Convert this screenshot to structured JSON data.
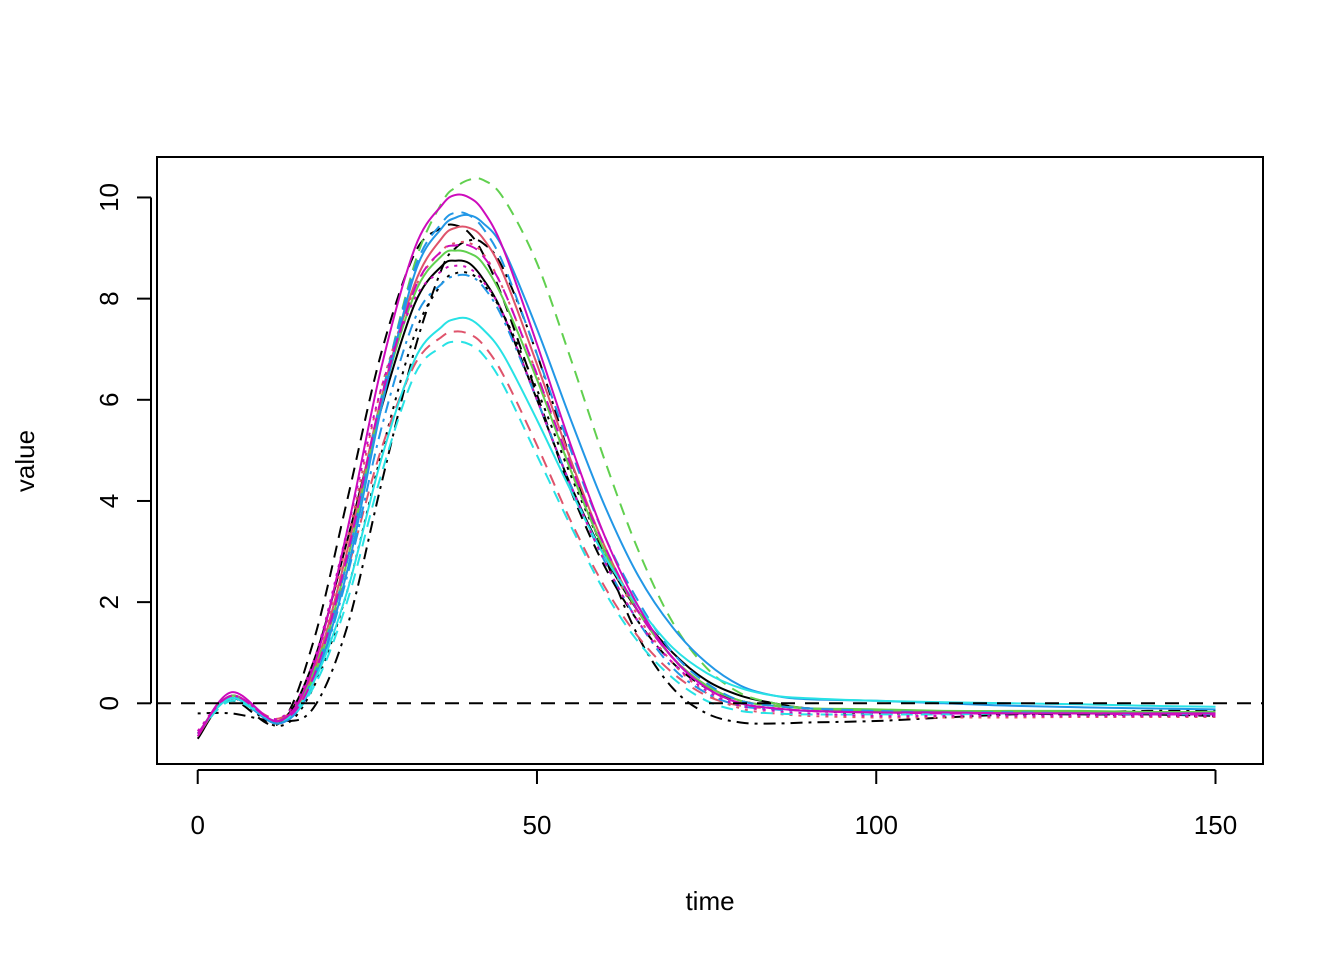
{
  "chart_data": {
    "type": "line",
    "title": "",
    "xlabel": "time",
    "ylabel": "value",
    "xlim": [
      -6,
      157
    ],
    "ylim": [
      -1.2,
      10.8
    ],
    "x_ticks": [
      0,
      50,
      100,
      150
    ],
    "x_tick_labels": [
      "0",
      "50",
      "100",
      "150"
    ],
    "y_ticks": [
      0,
      2,
      4,
      6,
      8,
      10
    ],
    "y_tick_labels": [
      "0",
      "2",
      "4",
      "6",
      "8",
      "10"
    ],
    "grid": false,
    "legend": "none",
    "reference_line": {
      "y": 0,
      "style": "dashed",
      "color": "#000000"
    },
    "series_x": [
      0,
      5,
      12,
      17,
      22,
      27,
      32,
      36,
      38,
      40,
      42,
      45,
      50,
      55,
      60,
      65,
      70,
      75,
      80,
      85,
      90,
      100,
      110,
      120,
      130,
      140,
      150
    ],
    "series": [
      {
        "color": "#000000",
        "dash": "solid",
        "values": [
          -0.7,
          0.15,
          -0.35,
          0.8,
          3.2,
          5.8,
          7.9,
          8.65,
          8.75,
          8.7,
          8.4,
          7.7,
          6.0,
          4.3,
          2.9,
          1.8,
          1.0,
          0.45,
          0.15,
          0.0,
          -0.1,
          -0.15,
          -0.18,
          -0.18,
          -0.2,
          -0.2,
          -0.22
        ]
      },
      {
        "color": "#000000",
        "dash": "dashed",
        "values": [
          -0.6,
          0.05,
          -0.4,
          1.2,
          4.0,
          6.9,
          8.9,
          9.4,
          9.45,
          9.3,
          8.9,
          8.0,
          6.1,
          4.2,
          2.7,
          1.6,
          0.8,
          0.3,
          0.05,
          -0.05,
          -0.1,
          -0.15,
          -0.18,
          -0.2,
          -0.22,
          -0.22,
          -0.25
        ]
      },
      {
        "color": "#000000",
        "dash": "dotted",
        "values": [
          -0.6,
          0.1,
          -0.45,
          0.3,
          2.2,
          4.9,
          7.3,
          8.3,
          8.5,
          8.5,
          8.3,
          7.7,
          6.2,
          4.5,
          3.0,
          1.8,
          0.9,
          0.3,
          0.0,
          -0.1,
          -0.15,
          -0.2,
          -0.2,
          -0.22,
          -0.22,
          -0.24,
          -0.25
        ]
      },
      {
        "color": "#000000",
        "dash": "dotdash",
        "values": [
          -0.2,
          -0.2,
          -0.35,
          -0.1,
          1.5,
          4.3,
          7.0,
          8.6,
          9.0,
          9.15,
          9.1,
          8.6,
          6.9,
          4.8,
          2.9,
          1.3,
          0.3,
          -0.2,
          -0.38,
          -0.4,
          -0.38,
          -0.35,
          -0.28,
          -0.22,
          -0.18,
          -0.15,
          -0.15
        ]
      },
      {
        "color": "#DF536B",
        "dash": "solid",
        "values": [
          -0.65,
          0.15,
          -0.35,
          0.6,
          3.0,
          6.0,
          8.3,
          9.2,
          9.4,
          9.4,
          9.2,
          8.5,
          6.7,
          4.8,
          3.1,
          1.8,
          0.9,
          0.35,
          0.05,
          -0.05,
          -0.1,
          -0.15,
          -0.16,
          -0.18,
          -0.18,
          -0.2,
          -0.2
        ]
      },
      {
        "color": "#DF536B",
        "dash": "dashed",
        "values": [
          -0.6,
          0.1,
          -0.3,
          0.5,
          2.6,
          5.0,
          6.7,
          7.25,
          7.35,
          7.3,
          7.1,
          6.5,
          5.1,
          3.6,
          2.3,
          1.3,
          0.6,
          0.15,
          -0.05,
          -0.1,
          -0.15,
          -0.18,
          -0.18,
          -0.2,
          -0.2,
          -0.2,
          -0.22
        ]
      },
      {
        "color": "#DF536B",
        "dash": "dotted",
        "values": [
          -0.55,
          0.12,
          -0.35,
          0.7,
          3.2,
          6.2,
          8.2,
          8.95,
          9.1,
          9.1,
          8.9,
          8.2,
          6.5,
          4.6,
          3.0,
          1.7,
          0.8,
          0.2,
          -0.1,
          -0.2,
          -0.25,
          -0.28,
          -0.28,
          -0.28,
          -0.27,
          -0.27,
          -0.27
        ]
      },
      {
        "color": "#61D04F",
        "dash": "solid",
        "values": [
          -0.6,
          0.15,
          -0.4,
          0.5,
          2.8,
          5.9,
          8.1,
          8.85,
          8.95,
          8.9,
          8.7,
          8.0,
          6.4,
          4.6,
          3.0,
          1.8,
          0.9,
          0.35,
          0.05,
          -0.05,
          -0.1,
          -0.12,
          -0.15,
          -0.15,
          -0.15,
          -0.17,
          -0.17
        ]
      },
      {
        "color": "#61D04F",
        "dash": "dashed",
        "values": [
          -0.6,
          0.1,
          -0.35,
          0.6,
          2.8,
          6.0,
          8.7,
          9.9,
          10.2,
          10.35,
          10.35,
          10.0,
          8.7,
          6.8,
          4.8,
          3.0,
          1.6,
          0.7,
          0.2,
          0.0,
          -0.1,
          -0.15,
          -0.17,
          -0.18,
          -0.18,
          -0.2,
          -0.2
        ]
      },
      {
        "color": "#2297E6",
        "dash": "solid",
        "values": [
          -0.6,
          0.1,
          -0.4,
          0.4,
          2.6,
          5.8,
          8.5,
          9.4,
          9.6,
          9.65,
          9.5,
          9.0,
          7.4,
          5.6,
          3.9,
          2.5,
          1.5,
          0.8,
          0.35,
          0.15,
          0.08,
          0.05,
          0.0,
          -0.05,
          -0.08,
          -0.1,
          -0.12
        ]
      },
      {
        "color": "#2297E6",
        "dash": "dashed",
        "values": [
          -0.6,
          0.1,
          -0.35,
          0.5,
          2.8,
          6.0,
          8.6,
          9.5,
          9.7,
          9.65,
          9.4,
          8.7,
          6.9,
          5.0,
          3.3,
          2.0,
          1.0,
          0.4,
          0.05,
          -0.05,
          -0.1,
          -0.15,
          -0.18,
          -0.18,
          -0.2,
          -0.2,
          -0.2
        ]
      },
      {
        "color": "#2297E6",
        "dash": "dotdash",
        "values": [
          -0.6,
          0.12,
          -0.4,
          0.4,
          2.5,
          5.4,
          7.6,
          8.3,
          8.45,
          8.45,
          8.25,
          7.6,
          6.0,
          4.3,
          2.8,
          1.6,
          0.7,
          0.2,
          -0.05,
          -0.12,
          -0.15,
          -0.18,
          -0.2,
          -0.2,
          -0.2,
          -0.22,
          -0.22
        ]
      },
      {
        "color": "#28E2E5",
        "dash": "solid",
        "values": [
          -0.6,
          0.1,
          -0.35,
          0.4,
          2.2,
          4.8,
          6.8,
          7.45,
          7.6,
          7.6,
          7.4,
          6.9,
          5.6,
          4.2,
          2.9,
          1.9,
          1.1,
          0.6,
          0.3,
          0.15,
          0.1,
          0.05,
          0.02,
          0.0,
          -0.02,
          -0.05,
          -0.07
        ]
      },
      {
        "color": "#28E2E5",
        "dash": "dashed",
        "values": [
          -0.6,
          0.05,
          -0.35,
          0.3,
          2.0,
          4.5,
          6.5,
          7.05,
          7.15,
          7.1,
          6.9,
          6.3,
          4.9,
          3.5,
          2.2,
          1.2,
          0.5,
          0.05,
          -0.15,
          -0.2,
          -0.22,
          -0.22,
          -0.22,
          -0.2,
          -0.2,
          -0.2,
          -0.2
        ]
      },
      {
        "color": "#CD0BBC",
        "dash": "solid",
        "values": [
          -0.65,
          0.22,
          -0.35,
          0.7,
          3.4,
          6.6,
          9.0,
          9.85,
          10.05,
          10.0,
          9.75,
          9.0,
          7.1,
          5.1,
          3.3,
          1.9,
          0.9,
          0.3,
          0.0,
          -0.1,
          -0.15,
          -0.18,
          -0.18,
          -0.2,
          -0.2,
          -0.2,
          -0.2
        ]
      },
      {
        "color": "#CD0BBC",
        "dash": "dashed",
        "values": [
          -0.6,
          0.15,
          -0.35,
          0.5,
          2.9,
          6.0,
          8.2,
          8.95,
          9.05,
          9.05,
          8.85,
          8.2,
          6.5,
          4.7,
          3.1,
          1.8,
          0.9,
          0.3,
          0.0,
          -0.1,
          -0.15,
          -0.18,
          -0.2,
          -0.2,
          -0.2,
          -0.22,
          -0.22
        ]
      },
      {
        "color": "#CD0BBC",
        "dash": "dotted",
        "values": [
          -0.55,
          0.15,
          -0.3,
          0.8,
          3.4,
          6.2,
          8.0,
          8.55,
          8.65,
          8.6,
          8.35,
          7.7,
          6.0,
          4.3,
          2.8,
          1.6,
          0.8,
          0.25,
          -0.05,
          -0.15,
          -0.2,
          -0.25,
          -0.25,
          -0.25,
          -0.25,
          -0.25,
          -0.25
        ]
      }
    ]
  }
}
